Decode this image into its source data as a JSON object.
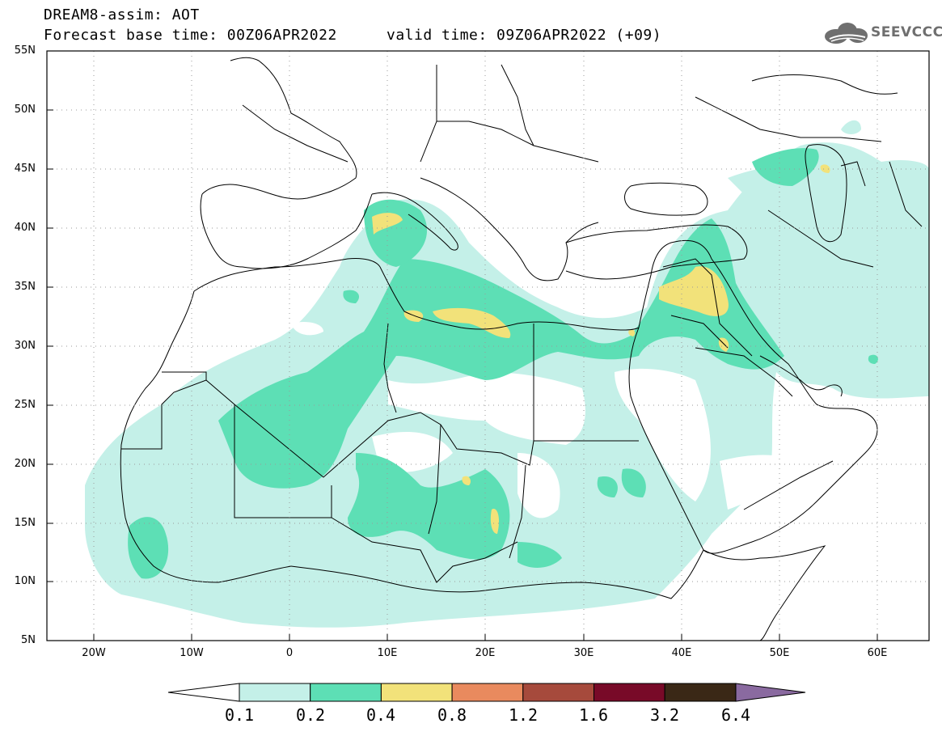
{
  "header": {
    "title": "DREAM8-assim: AOT",
    "base_time": "Forecast base time: 00Z06APR2022",
    "valid_time": "valid time: 09Z06APR2022 (+09)"
  },
  "logo": {
    "text": "SEEVCCC",
    "icon": "cloud-icon"
  },
  "map": {
    "variable": "AOT",
    "lat_range": [
      5,
      55
    ],
    "lon_range": [
      -25,
      65
    ],
    "lat_labels": [
      "55N",
      "50N",
      "45N",
      "40N",
      "35N",
      "30N",
      "25N",
      "20N",
      "15N",
      "10N",
      "5N"
    ],
    "lon_labels": [
      "20W",
      "10W",
      "0",
      "10E",
      "20E",
      "30E",
      "40E",
      "50E",
      "60E"
    ],
    "grid": "dotted"
  },
  "colorbar": {
    "labels": [
      "0.1",
      "0.2",
      "0.4",
      "0.8",
      "1.2",
      "1.6",
      "3.2",
      "6.4"
    ],
    "colors": [
      "#ffffff",
      "#c4f0e8",
      "#5ddfb5",
      "#f2e27a",
      "#e98a5e",
      "#a64a3c",
      "#780a28",
      "#3a2816",
      "#8a6aa0"
    ]
  }
}
